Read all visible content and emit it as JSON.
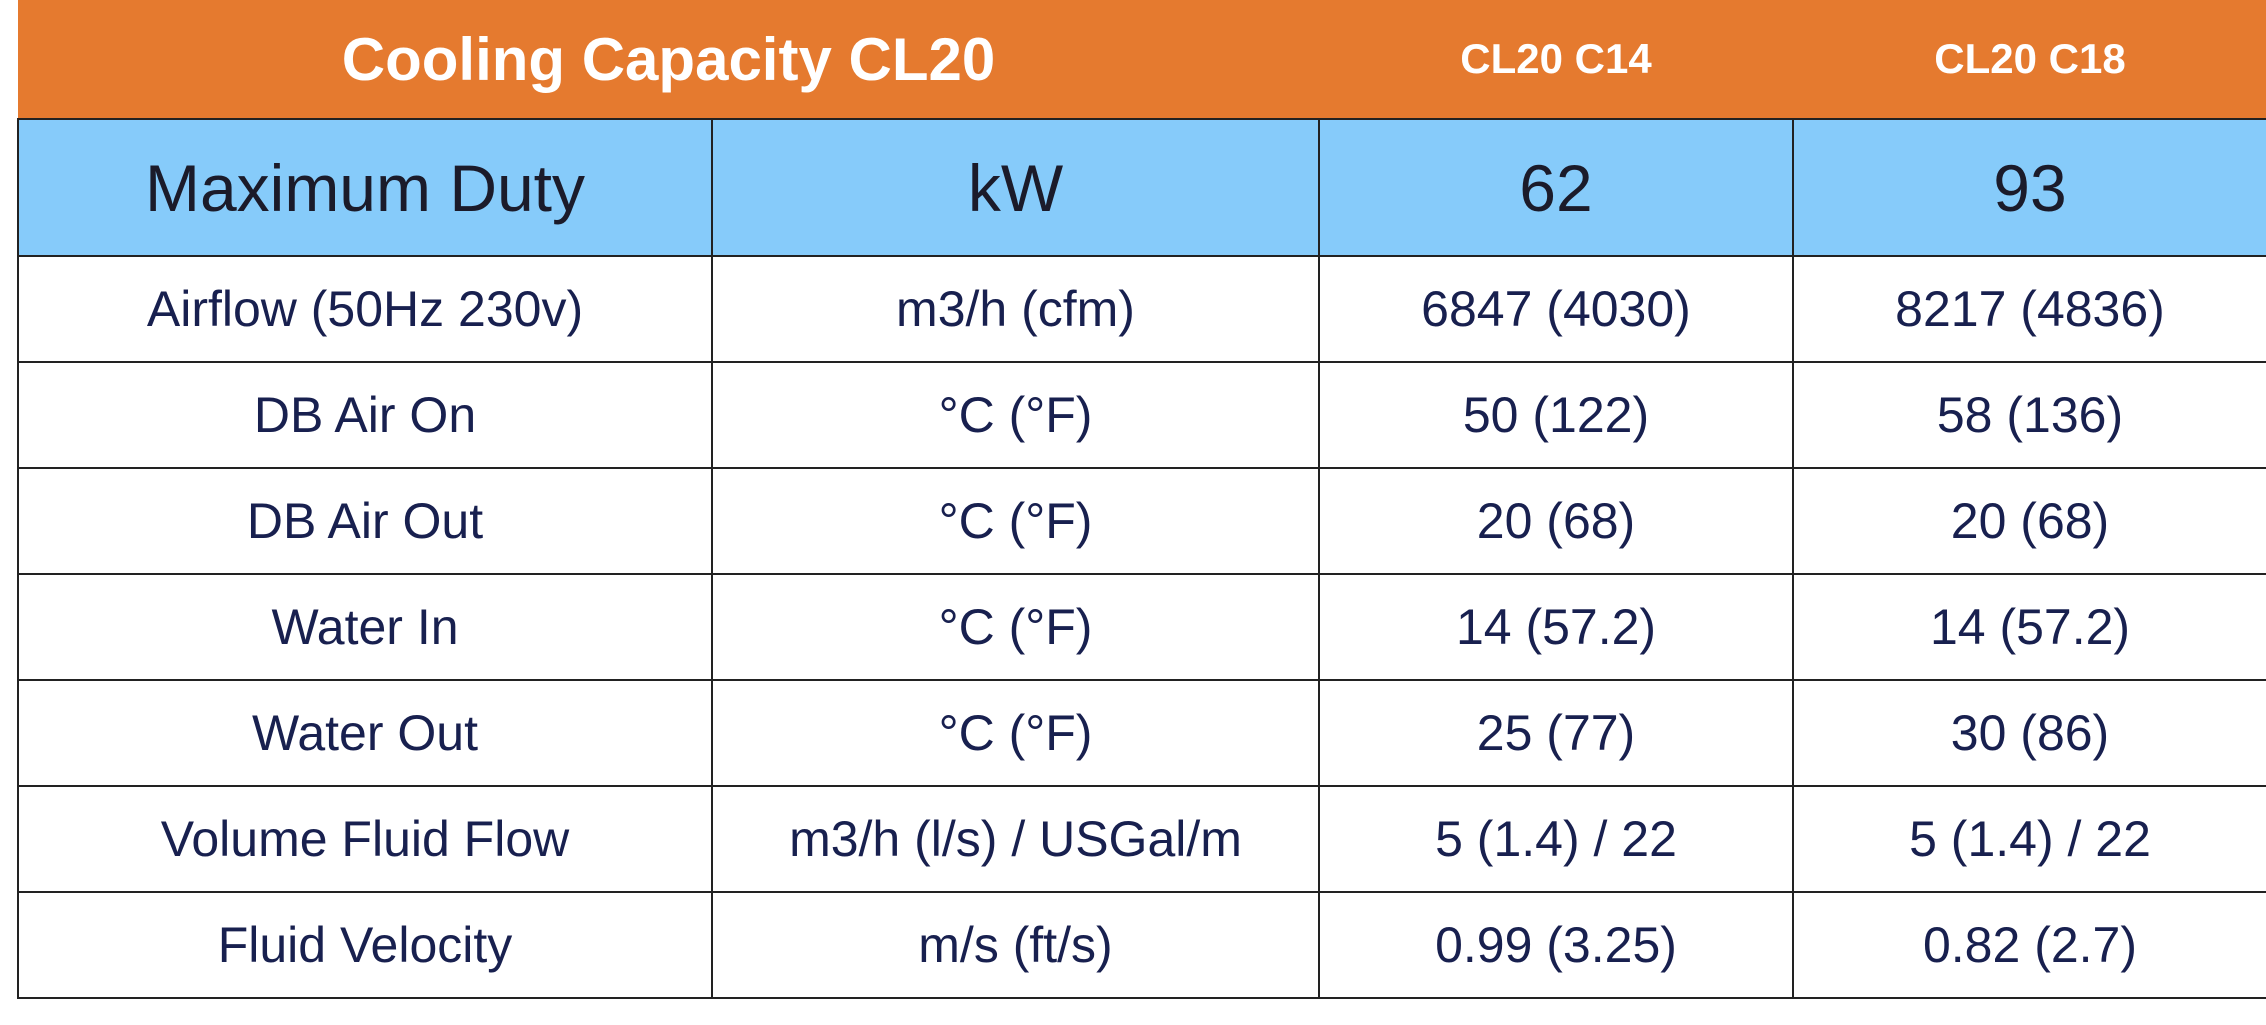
{
  "header": {
    "title": "Cooling Capacity CL20",
    "columns": [
      "CL20 C14",
      "CL20 C18"
    ]
  },
  "table": {
    "rows": [
      [
        "Maximum Duty",
        "kW",
        "62",
        "93"
      ],
      [
        "Airflow (50Hz 230v)",
        "m3/h (cfm)",
        "6847 (4030)",
        "8217 (4836)"
      ],
      [
        "DB Air On",
        "°C (°F)",
        "50 (122)",
        "58 (136)"
      ],
      [
        "DB Air Out",
        "°C (°F)",
        "20 (68)",
        "20 (68)"
      ],
      [
        "Water In",
        "°C (°F)",
        "14 (57.2)",
        "14 (57.2)"
      ],
      [
        "Water Out",
        "°C (°F)",
        "25 (77)",
        "30 (86)"
      ],
      [
        "Volume Fluid Flow",
        "m3/h (l/s) / USGal/m",
        "5 (1.4) / 22",
        "5 (1.4) / 22"
      ],
      [
        "Fluid Velocity",
        "m/s (ft/s)",
        "0.99 (3.25)",
        "0.82 (2.7)"
      ]
    ]
  }
}
